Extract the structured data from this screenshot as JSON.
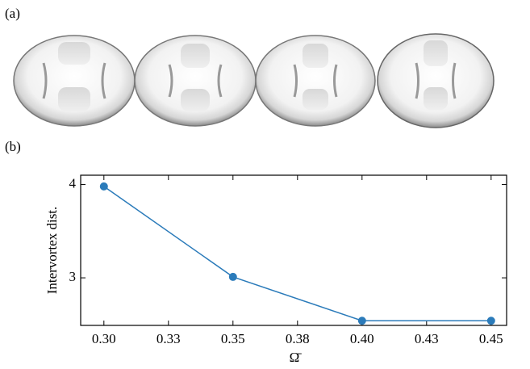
{
  "panel_labels": [
    "(a)",
    "(b)"
  ],
  "chart_data": {
    "type": "line",
    "xlabel": "Ω̄",
    "ylabel": "Intervortex dist.",
    "x": [
      0.3,
      0.35,
      0.4,
      0.45
    ],
    "values": [
      3.98,
      3.01,
      2.54,
      2.54
    ],
    "color": "#2b7bba",
    "xlim": [
      0.291,
      0.456
    ],
    "ylim": [
      2.49,
      4.1
    ],
    "xticks": [
      {
        "value": 0.3,
        "label": "0.30"
      },
      {
        "value": 0.325,
        "label": "0.33"
      },
      0.35,
      {
        "value": 0.375,
        "label": "0.38"
      },
      {
        "value": 0.4,
        "label": "0.40"
      },
      {
        "value": 0.425,
        "label": "0.43"
      },
      0.45
    ],
    "yticks": [
      3,
      4
    ]
  }
}
